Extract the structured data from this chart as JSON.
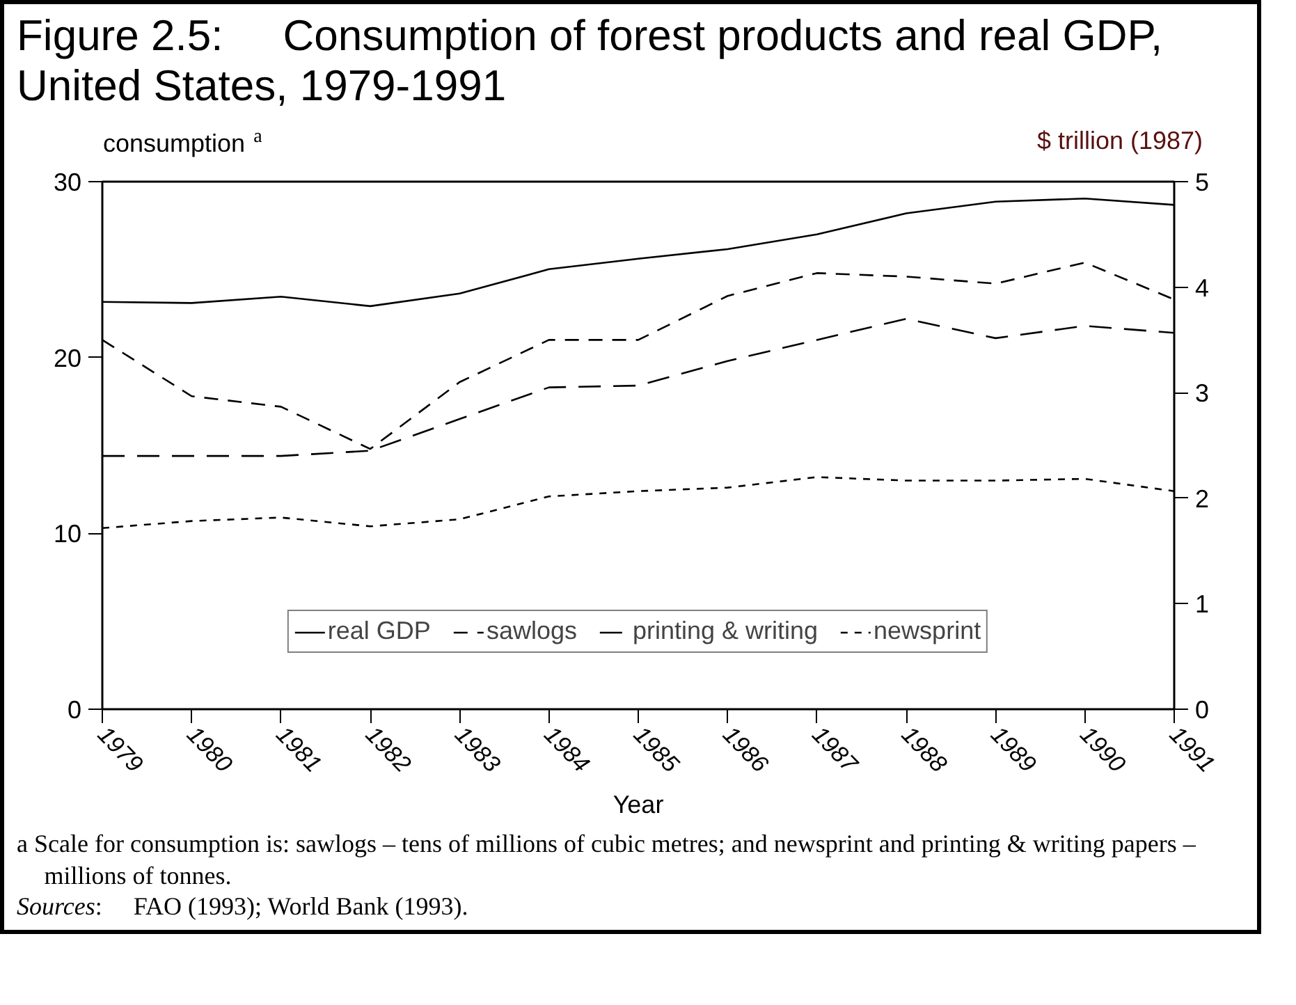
{
  "chart_data": {
    "type": "line",
    "title": "Figure 2.5:\tConsumption of forest products and real GDP, United States, 1979-1991",
    "xlabel": "Year",
    "ylabel": "consumption$^{a}$",
    "y2label": "$ trillion (1987)",
    "x": [
      1979,
      1980,
      1981,
      1982,
      1983,
      1984,
      1985,
      1986,
      1987,
      1988,
      1989,
      1990,
      1991
    ],
    "series": [
      {
        "name": "real GDP",
        "color": "#000000",
        "axis": "y2",
        "line_style": "solid",
        "values": [
          3.86,
          3.85,
          3.91,
          3.82,
          3.94,
          4.17,
          4.27,
          4.36,
          4.5,
          4.7,
          4.81,
          4.84,
          4.78
        ]
      },
      {
        "name": "sawlogs",
        "color": "#000000",
        "line_style": "dashed",
        "values": [
          21.0,
          17.8,
          17.2,
          14.8,
          18.6,
          21.0,
          21.0,
          23.5,
          24.8,
          24.6,
          24.2,
          25.4,
          23.3
        ]
      },
      {
        "name": "printing & writing",
        "color": "#000000",
        "line_style": "dashed",
        "values": [
          14.4,
          14.4,
          14.4,
          14.7,
          16.5,
          18.3,
          18.4,
          19.8,
          21.0,
          22.2,
          21.1,
          21.8,
          21.4
        ]
      },
      {
        "name": "newsprint",
        "color": "#000000",
        "line_style": "dotted",
        "values": [
          10.3,
          10.7,
          10.9,
          10.4,
          10.8,
          12.1,
          12.4,
          12.6,
          13.2,
          13.0,
          13.0,
          13.1,
          12.4
        ]
      }
    ],
    "xlim": [
      1979,
      1991
    ],
    "xticks": [
      1979,
      1980,
      1981,
      1982,
      1983,
      1984,
      1985,
      1986,
      1987,
      1988,
      1989,
      1990,
      1991
    ],
    "ylim": [
      0,
      30
    ],
    "yticks": [
      0,
      10,
      20,
      30
    ],
    "y2lim": [
      0,
      5
    ],
    "y2ticks": [
      0,
      1,
      2,
      3,
      4,
      5
    ],
    "grid": false,
    "legend": "bottom",
    "marker": "none",
    "annotations": [
      "a Scale for consumption is: sawlogs – tens of millions of cubic metres; and newsprint and printing & writing papers – millions of tonnes.",
      "Sources:\tFAO (1993); World Bank (1993)."
    ]
  }
}
